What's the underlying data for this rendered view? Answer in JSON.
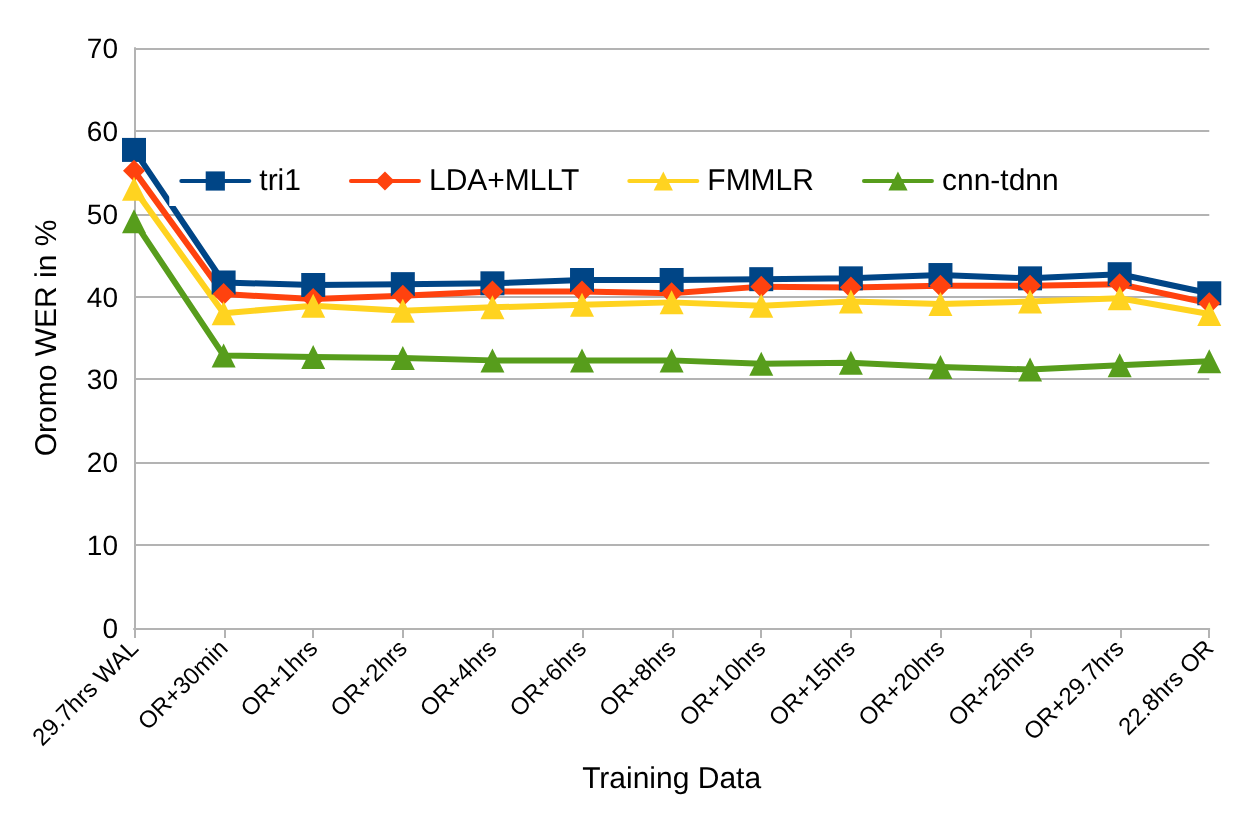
{
  "chart_data": {
    "type": "line",
    "xlabel": "Training Data",
    "ylabel": "Oromo WER in %",
    "categories": [
      "29.7hrs WAL",
      "OR+30min",
      "OR+1hrs",
      "OR+2hrs",
      "OR+4hrs",
      "OR+6hrs",
      "OR+8hrs",
      "OR+10hrs",
      "OR+15hrs",
      "OR+20hrs",
      "OR+25hrs",
      "OR+29.7hrs",
      "22.8hrs OR"
    ],
    "series": [
      {
        "name": "tri1",
        "color": "#004586",
        "marker": "square",
        "values": [
          57.7,
          41.7,
          41.4,
          41.5,
          41.6,
          42.0,
          42.0,
          42.1,
          42.2,
          42.6,
          42.2,
          42.7,
          40.4
        ]
      },
      {
        "name": "LDA+MLLT",
        "color": "#ff420e",
        "marker": "diamond",
        "values": [
          55.2,
          40.3,
          39.7,
          40.1,
          40.6,
          40.6,
          40.4,
          41.2,
          41.1,
          41.3,
          41.3,
          41.5,
          39.2
        ]
      },
      {
        "name": "FMMLR",
        "color": "#ffd320",
        "marker": "triangle",
        "values": [
          53.0,
          38.0,
          38.9,
          38.3,
          38.7,
          39.0,
          39.3,
          38.9,
          39.4,
          39.1,
          39.4,
          39.8,
          37.9
        ]
      },
      {
        "name": "cnn-tdnn",
        "color": "#579d1c",
        "marker": "triangle",
        "values": [
          49.1,
          32.9,
          32.7,
          32.6,
          32.3,
          32.3,
          32.3,
          31.9,
          32.0,
          31.5,
          31.2,
          31.7,
          32.2
        ]
      }
    ],
    "ylim": [
      0,
      70
    ],
    "yticks": [
      0,
      10,
      20,
      30,
      40,
      50,
      60,
      70
    ],
    "grid": "y",
    "legend": "top",
    "line_style": "solid"
  }
}
